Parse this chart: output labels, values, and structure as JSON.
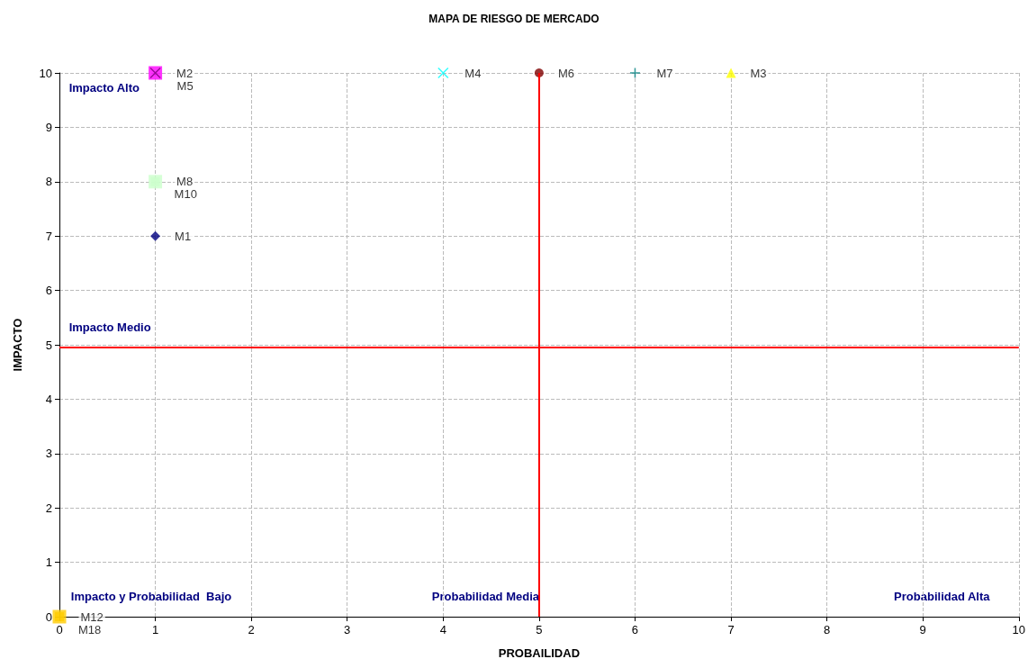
{
  "chart_data": {
    "type": "scatter",
    "title": "MAPA DE RIESGO DE MERCADO",
    "xlabel": "PROBAILIDAD",
    "ylabel": "IMPACTO",
    "xlim": [
      0,
      10
    ],
    "xticks": [
      0,
      1,
      2,
      3,
      4,
      5,
      6,
      7,
      8,
      9,
      10
    ],
    "ylim": [
      0,
      10
    ],
    "yticks": [
      0,
      1,
      2,
      3,
      4,
      5,
      6,
      7,
      8,
      9,
      10
    ],
    "grid": true,
    "legend": false,
    "series": [
      {
        "name": "M1",
        "color": "#000080",
        "marker": "diamond",
        "x": [
          1
        ],
        "values": [
          7
        ]
      },
      {
        "name": "M2",
        "color": "#ff00ff",
        "marker": "square",
        "x": [
          1
        ],
        "values": [
          10
        ]
      },
      {
        "name": "M5",
        "color": "#800080",
        "marker": "cross",
        "x": [
          1
        ],
        "values": [
          10
        ]
      },
      {
        "name": "M3",
        "color": "#ffff00",
        "marker": "triangle",
        "x": [
          7
        ],
        "values": [
          10
        ]
      },
      {
        "name": "M4",
        "color": "#00ffff",
        "marker": "cross",
        "x": [
          4
        ],
        "values": [
          10
        ]
      },
      {
        "name": "M6",
        "color": "#800000",
        "marker": "circle",
        "x": [
          5
        ],
        "values": [
          10
        ]
      },
      {
        "name": "M7",
        "color": "#008080",
        "marker": "plus",
        "x": [
          6
        ],
        "values": [
          10
        ]
      },
      {
        "name": "M8",
        "color": "#ccffcc",
        "marker": "square",
        "x": [
          1
        ],
        "values": [
          8
        ]
      },
      {
        "name": "M10",
        "color": "#ccffcc",
        "marker": "square",
        "x": [
          1
        ],
        "values": [
          8
        ]
      },
      {
        "name": "M12",
        "color": "#ffcc00",
        "marker": "square",
        "x": [
          0
        ],
        "values": [
          0
        ]
      },
      {
        "name": "M18",
        "color": "#ffcc00",
        "marker": "square",
        "x": [
          0
        ],
        "values": [
          0
        ]
      }
    ],
    "ref_lines": [
      {
        "axis": "x",
        "value": 5,
        "color": "#ff0000"
      },
      {
        "axis": "y",
        "value": 4.95,
        "color": "#ff0000"
      }
    ],
    "annotations": [
      "Impacto Alto",
      "Impacto Medio",
      "Impacto y Probabilidad  Bajo",
      "Probabilidad Media",
      "Probabilidad Alta"
    ]
  }
}
